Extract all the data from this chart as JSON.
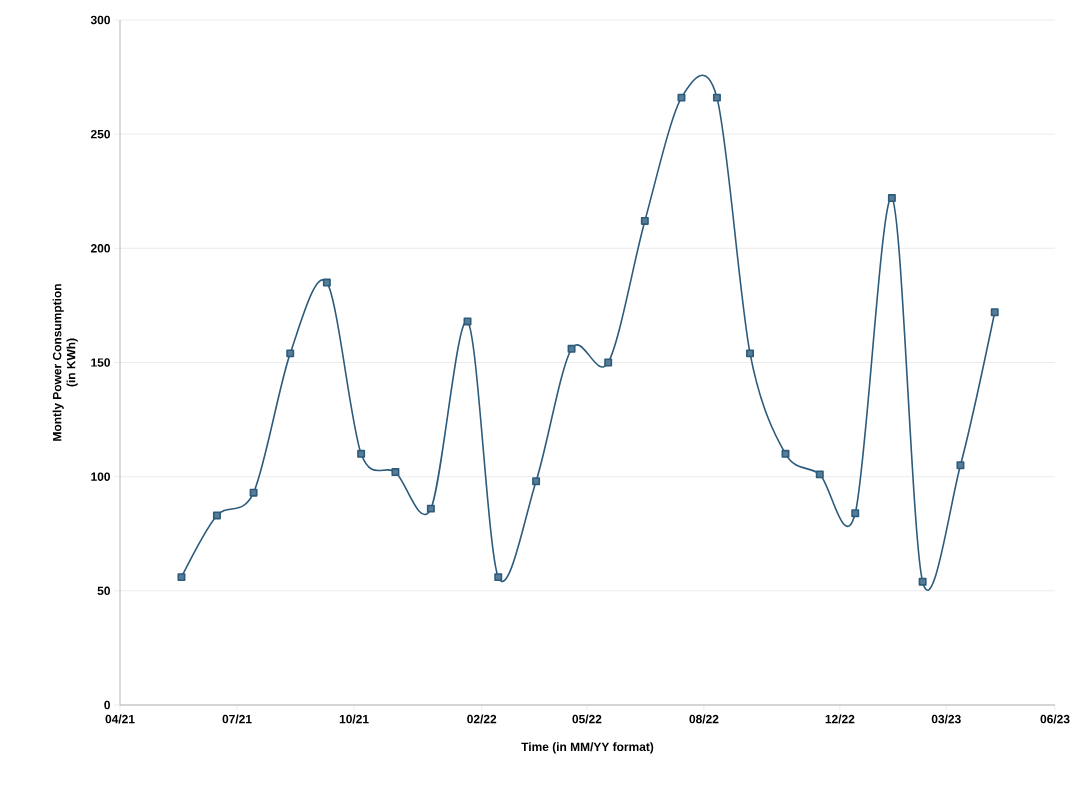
{
  "chart_data": {
    "type": "line",
    "xlabel": "Time (in MM/YY format)",
    "ylabel": "Montly Power Consumption\n(in KWh)",
    "x": [
      "2021-05-23",
      "2021-06-22",
      "2021-07-23",
      "2021-08-23",
      "2021-09-23",
      "2021-10-22",
      "2021-11-20",
      "2021-12-20",
      "2022-01-20",
      "2022-02-15",
      "2022-03-19",
      "2022-04-18",
      "2022-05-19",
      "2022-06-19",
      "2022-07-20",
      "2022-08-19",
      "2022-09-16",
      "2022-10-16",
      "2022-11-14",
      "2022-12-14",
      "2023-01-14",
      "2023-02-09",
      "2023-03-13",
      "2023-04-11"
    ],
    "series": [
      {
        "color": "#2d5b7c",
        "values": [
          56,
          83,
          93,
          154,
          185,
          110,
          102,
          86,
          168,
          56,
          98,
          156,
          150,
          212,
          266,
          266,
          154,
          110,
          101,
          84,
          222,
          54,
          105,
          172
        ]
      }
    ],
    "xlim": [
      "2021-04-01",
      "2023-06-01"
    ],
    "xticks": [
      {
        "value": "2021-04-01",
        "label": "04/21"
      },
      {
        "value": "2021-07-09",
        "label": "07/21"
      },
      {
        "value": "2021-10-16",
        "label": "10/21"
      },
      {
        "value": "2022-02-01",
        "label": "02/22"
      },
      {
        "value": "2022-05-01",
        "label": "05/22"
      },
      {
        "value": "2022-08-08",
        "label": "08/22"
      },
      {
        "value": "2022-12-01",
        "label": "12/22"
      },
      {
        "value": "2023-03-01",
        "label": "03/23"
      },
      {
        "value": "2023-06-01",
        "label": "06/23"
      }
    ],
    "ylim": [
      0,
      300
    ],
    "yticks": [
      0,
      50,
      100,
      150,
      200,
      250,
      300
    ],
    "grid": "y",
    "marker": "square",
    "line_style": "solid"
  }
}
